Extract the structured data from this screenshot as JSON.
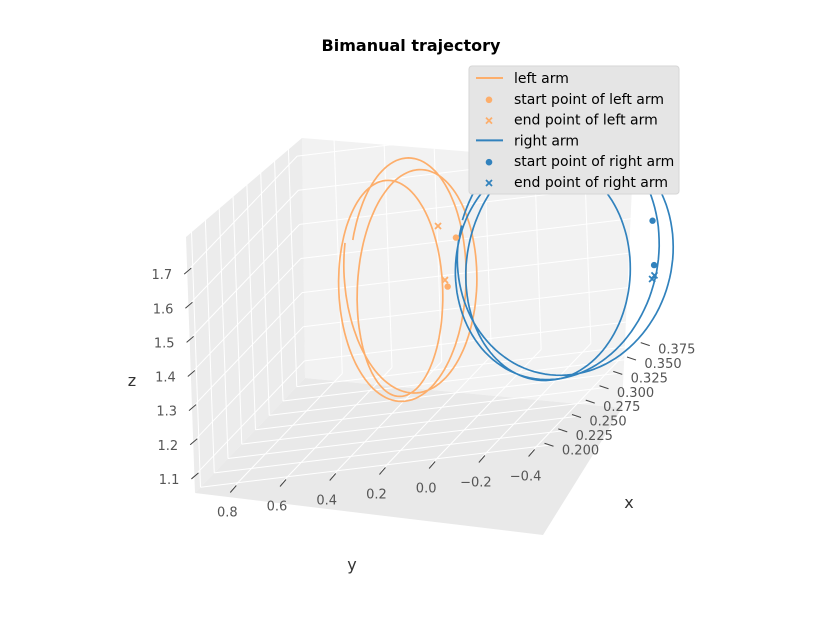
{
  "chart_data": {
    "type": "line",
    "projection": "3d",
    "title": "Bimanual trajectory",
    "xlabel": "x",
    "ylabel": "y",
    "zlabel": "z",
    "xlim": [
      0.19,
      0.39
    ],
    "ylim": [
      -0.45,
      0.95
    ],
    "zlim": [
      1.05,
      1.8
    ],
    "x_ticks": [
      "0.200",
      "0.225",
      "0.250",
      "0.275",
      "0.300",
      "0.325",
      "0.350",
      "0.375"
    ],
    "y_ticks": [
      "0.8",
      "0.6",
      "0.4",
      "0.2",
      "0.0",
      "−0.2",
      "−0.4"
    ],
    "z_ticks": [
      "1.1",
      "1.2",
      "1.3",
      "1.4",
      "1.5",
      "1.6",
      "1.7"
    ],
    "grid": true,
    "legend_position": "top-right",
    "colors": {
      "left": "#fdae6b",
      "right": "#3182bd",
      "pane": "#f2f2f2",
      "grid": "#ffffff",
      "legend_bg": "#e5e5e5"
    },
    "legend": [
      {
        "label": "left arm",
        "marker": "line",
        "color": "#fdae6b"
      },
      {
        "label": "start point of left arm",
        "marker": "dot",
        "color": "#fdae6b"
      },
      {
        "label": "end point of left arm",
        "marker": "x",
        "color": "#fdae6b"
      },
      {
        "label": "right arm",
        "marker": "line",
        "color": "#3182bd"
      },
      {
        "label": "start point of right arm",
        "marker": "dot",
        "color": "#3182bd"
      },
      {
        "label": "end point of right arm",
        "marker": "x",
        "color": "#3182bd"
      }
    ],
    "series": [
      {
        "name": "left arm",
        "color": "#fdae6b",
        "loops": 3,
        "center": {
          "x": 0.3,
          "y": 0.34,
          "z": 1.42
        },
        "radius": {
          "y": 0.22,
          "z": 0.33
        },
        "drift": {
          "y": 0.03,
          "z": 0.015
        },
        "start_points": [
          {
            "x": 0.3,
            "y": 0.12,
            "z": 1.54
          },
          {
            "x": 0.3,
            "y": 0.16,
            "z": 1.4
          }
        ],
        "end_points": [
          {
            "x": 0.3,
            "y": 0.19,
            "z": 1.58
          },
          {
            "x": 0.3,
            "y": 0.17,
            "z": 1.42
          }
        ]
      },
      {
        "name": "right arm",
        "color": "#3182bd",
        "loops": 3,
        "center": {
          "x": 0.3,
          "y": -0.27,
          "z": 1.43
        },
        "radius": {
          "y": 0.38,
          "z": 0.34
        },
        "drift": {
          "y": 0.03,
          "z": 0.015
        },
        "start_points": [
          {
            "x": 0.3,
            "y": -0.67,
            "z": 1.52
          },
          {
            "x": 0.3,
            "y": -0.67,
            "z": 1.39
          }
        ],
        "end_points": [
          {
            "x": 0.3,
            "y": -0.66,
            "z": 1.35
          },
          {
            "x": 0.3,
            "y": -0.67,
            "z": 1.36
          }
        ]
      }
    ]
  }
}
